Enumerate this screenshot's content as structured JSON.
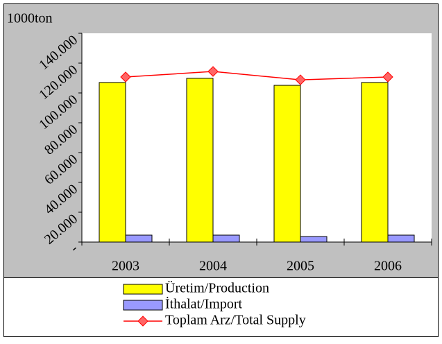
{
  "chart_data": {
    "type": "bar",
    "unit_label": "1000ton",
    "categories": [
      "2003",
      "2004",
      "2005",
      "2006"
    ],
    "series": [
      {
        "name": "Üretim/Production",
        "color": "#ffff00",
        "type": "bar",
        "values": [
          107000,
          109800,
          105100,
          107000
        ]
      },
      {
        "name": "İthalat/Import",
        "color": "#9999ff",
        "type": "bar",
        "values": [
          4650,
          4650,
          3700,
          4650
        ]
      },
      {
        "name": "Toplam Arz/Total Supply",
        "color": "#ff0000",
        "type": "line",
        "values": [
          110700,
          114400,
          108800,
          110700
        ]
      }
    ],
    "ylim": [
      0,
      140000
    ],
    "yticks": [
      {
        "value": 0,
        "label": "-"
      },
      {
        "value": 20000,
        "label": "20.000"
      },
      {
        "value": 40000,
        "label": "40.000"
      },
      {
        "value": 60000,
        "label": "60.000"
      },
      {
        "value": 80000,
        "label": "80.000"
      },
      {
        "value": 100000,
        "label": "100.000"
      },
      {
        "value": 120000,
        "label": "120.000"
      },
      {
        "value": 140000,
        "label": "140.000"
      }
    ],
    "grid": false,
    "legend": "bottom"
  }
}
